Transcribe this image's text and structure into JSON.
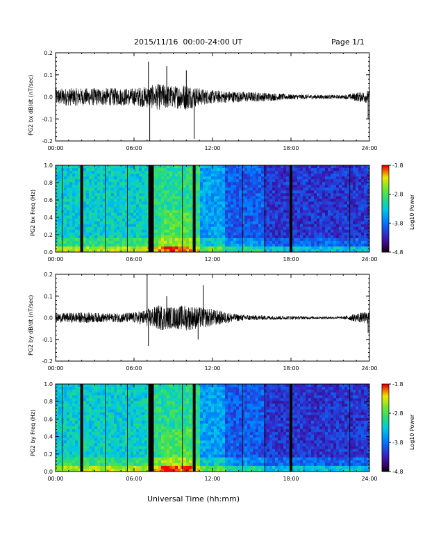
{
  "header": {
    "title": "2015/11/16  00:00-24:00 UT",
    "page": "Page 1/1"
  },
  "x_axis_label": "Universal Time (hh:mm)",
  "chart_data": [
    {
      "type": "line",
      "ylabel": "PG2 bx dB/dt (nT/sec)",
      "ylim": [
        -0.2,
        0.2
      ],
      "yticks": [
        "0.2",
        "0.1",
        "0.0",
        "-0.1",
        "-0.2"
      ],
      "xticks": [
        "00:00",
        "06:00",
        "12:00",
        "18:00",
        "24:00"
      ],
      "xlim_hours": [
        0,
        24
      ],
      "envelope_hours": [
        0,
        2,
        4,
        6,
        7,
        8,
        9,
        10,
        11,
        12,
        14,
        16,
        18,
        20,
        22,
        23,
        24
      ],
      "envelope_amp": [
        0.04,
        0.04,
        0.04,
        0.04,
        0.05,
        0.06,
        0.05,
        0.06,
        0.04,
        0.03,
        0.025,
        0.02,
        0.012,
        0.01,
        0.008,
        0.02,
        0.03
      ],
      "spikes": [
        {
          "t": 7.1,
          "v": 0.16
        },
        {
          "t": 7.2,
          "v": -0.2
        },
        {
          "t": 8.5,
          "v": 0.14
        },
        {
          "t": 10.0,
          "v": 0.12
        },
        {
          "t": 10.6,
          "v": -0.19
        },
        {
          "t": 23.9,
          "v": -0.1
        }
      ]
    },
    {
      "type": "heatmap",
      "ylabel": "PG2 bx Freq (Hz)",
      "ylim": [
        0.0,
        1.0
      ],
      "yticks": [
        "1.0",
        "0.8",
        "0.6",
        "0.4",
        "0.2",
        "0.0"
      ],
      "xticks": [
        "00:00",
        "06:00",
        "12:00",
        "18:00",
        "24:00"
      ],
      "colorbar": {
        "label": "Log10 Power",
        "ticks": [
          "-1.8",
          "-2.8",
          "-3.8",
          "-4.8"
        ],
        "range": [
          -4.8,
          -1.8
        ]
      },
      "gaps_hours": [
        2.0,
        7.2,
        7.4,
        10.6,
        18.0
      ],
      "thin_lines_hours": [
        0.5,
        3.8,
        5.5,
        9.7,
        14.3,
        16.0,
        22.5
      ]
    },
    {
      "type": "line",
      "ylabel": "PG2 by dB/dt (nT/sec)",
      "ylim": [
        -0.2,
        0.2
      ],
      "yticks": [
        "0.2",
        "0.1",
        "0.0",
        "-0.1",
        "-0.2"
      ],
      "xticks": [
        "00:00",
        "06:00",
        "12:00",
        "18:00",
        "24:00"
      ],
      "xlim_hours": [
        0,
        24
      ],
      "envelope_hours": [
        0,
        2,
        4,
        6,
        7,
        8,
        9,
        10,
        11,
        12,
        14,
        16,
        18,
        20,
        22,
        23,
        24
      ],
      "envelope_amp": [
        0.02,
        0.025,
        0.02,
        0.025,
        0.04,
        0.06,
        0.05,
        0.06,
        0.05,
        0.04,
        0.015,
        0.01,
        0.008,
        0.006,
        0.006,
        0.02,
        0.03
      ],
      "spikes": [
        {
          "t": 7.0,
          "v": 0.2
        },
        {
          "t": 7.1,
          "v": -0.13
        },
        {
          "t": 8.5,
          "v": 0.1
        },
        {
          "t": 11.3,
          "v": 0.15
        },
        {
          "t": 10.9,
          "v": -0.1
        },
        {
          "t": 23.9,
          "v": -0.07
        }
      ]
    },
    {
      "type": "heatmap",
      "ylabel": "PG2 by Freq (Hz)",
      "ylim": [
        0.0,
        1.0
      ],
      "yticks": [
        "1.0",
        "0.8",
        "0.6",
        "0.4",
        "0.2",
        "0.0"
      ],
      "xticks": [
        "00:00",
        "06:00",
        "12:00",
        "18:00",
        "24:00"
      ],
      "colorbar": {
        "label": "Log10 Power",
        "ticks": [
          "-1.8",
          "-2.8",
          "-3.8",
          "-4.8"
        ],
        "range": [
          -4.8,
          -1.8
        ]
      },
      "gaps_hours": [
        2.0,
        7.2,
        7.4,
        10.6,
        18.0
      ],
      "thin_lines_hours": [
        0.5,
        3.8,
        5.5,
        9.7,
        14.3,
        16.0,
        22.5
      ]
    }
  ]
}
